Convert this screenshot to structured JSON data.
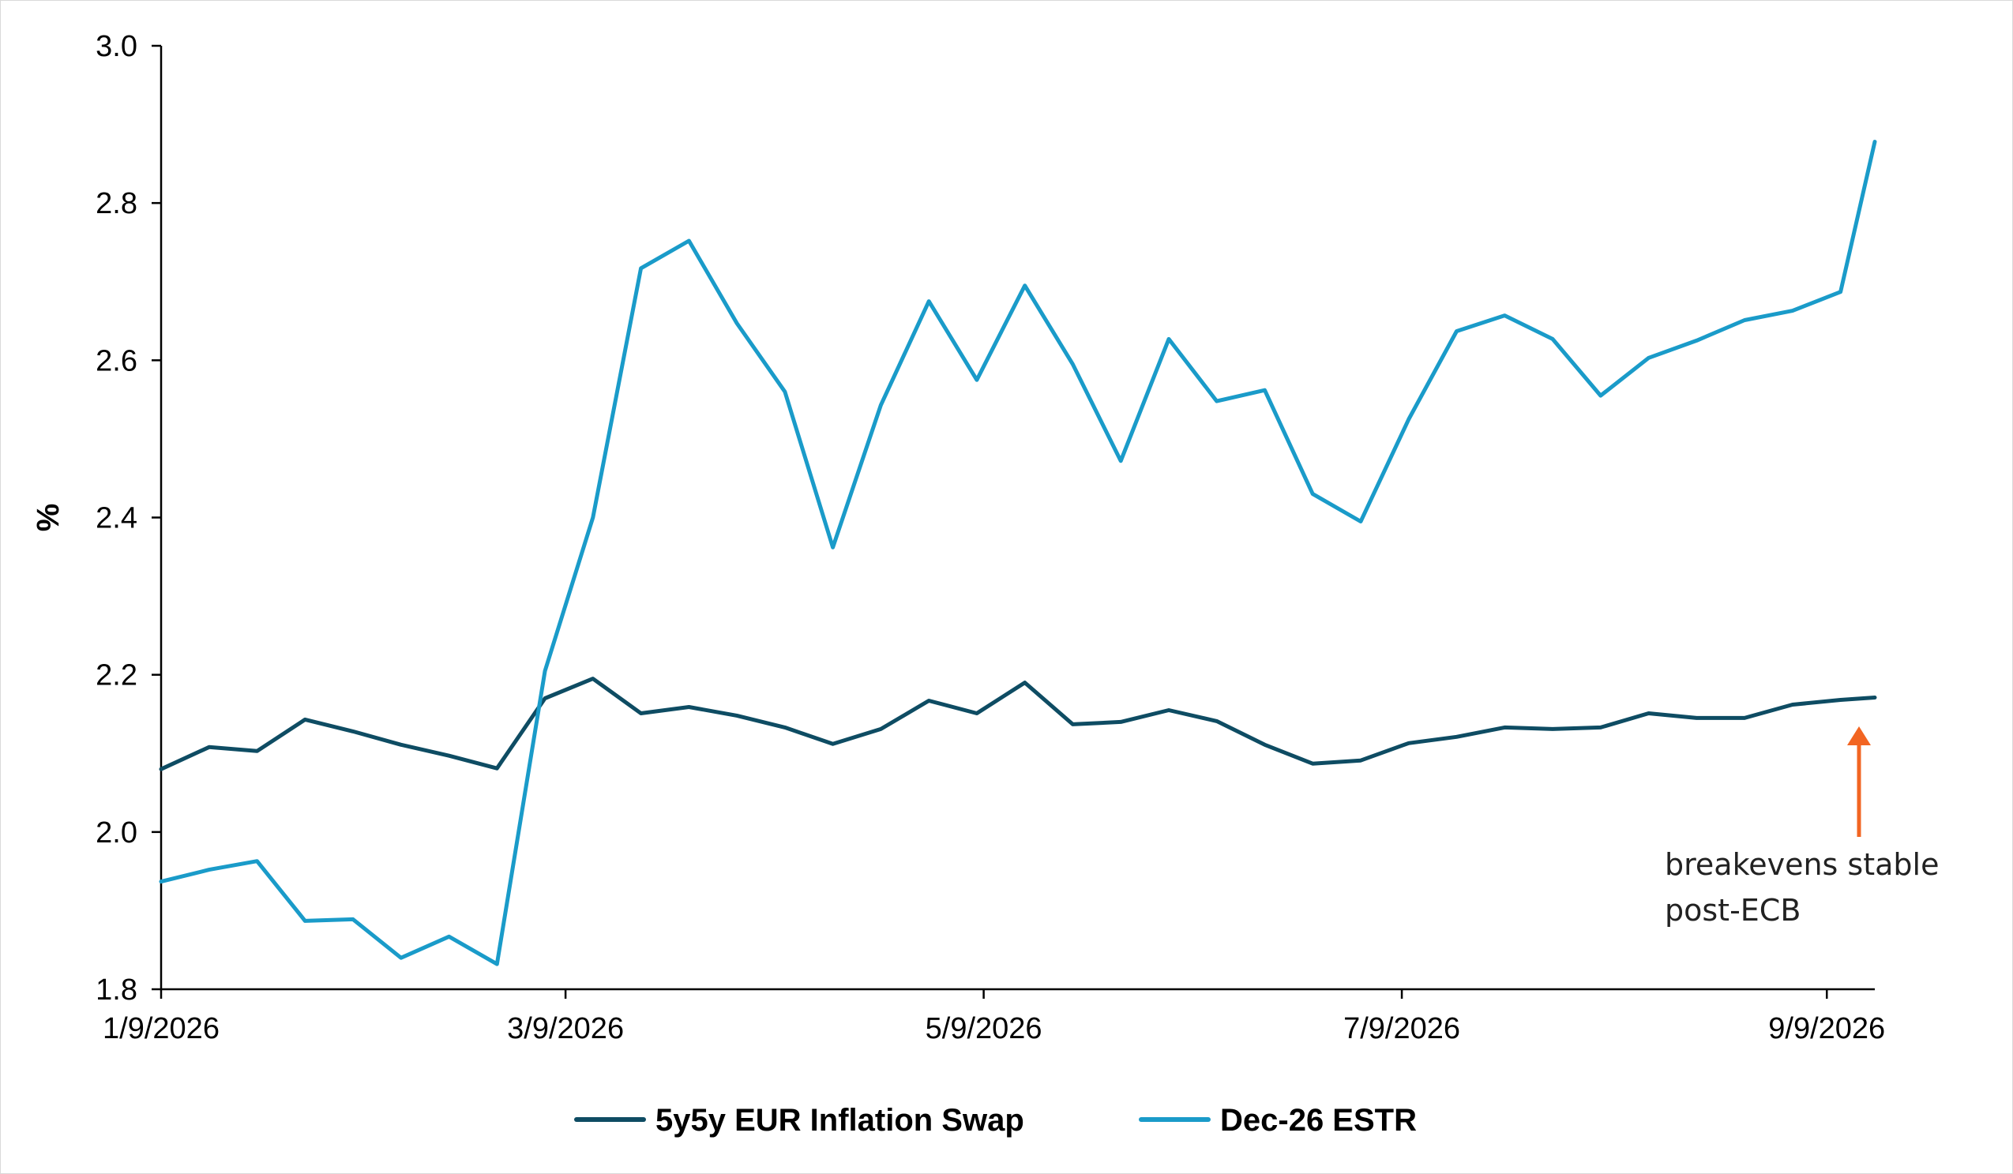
{
  "chart_data": {
    "type": "line",
    "title": "",
    "xlabel": "",
    "ylabel": "%",
    "ylim": [
      1.8,
      3.0
    ],
    "yticks": [
      "1.8",
      "2.0",
      "2.2",
      "2.4",
      "2.6",
      "2.8",
      "3.0"
    ],
    "xlim": [
      "2026-01-09",
      "2026-09-16"
    ],
    "xticks": [
      {
        "label": "1/9/2026",
        "date": "2026-01-09"
      },
      {
        "label": "3/9/2026",
        "date": "2026-03-09"
      },
      {
        "label": "5/9/2026",
        "date": "2026-05-09"
      },
      {
        "label": "7/9/2026",
        "date": "2026-07-09"
      },
      {
        "label": "9/9/2026",
        "date": "2026-09-09"
      }
    ],
    "x": [
      "2026-01-09",
      "2026-01-16",
      "2026-01-23",
      "2026-01-30",
      "2026-02-06",
      "2026-02-13",
      "2026-02-20",
      "2026-02-27",
      "2026-03-06",
      "2026-03-13",
      "2026-03-20",
      "2026-03-27",
      "2026-04-03",
      "2026-04-10",
      "2026-04-17",
      "2026-04-24",
      "2026-05-01",
      "2026-05-08",
      "2026-05-15",
      "2026-05-22",
      "2026-05-29",
      "2026-06-05",
      "2026-06-12",
      "2026-06-19",
      "2026-06-26",
      "2026-07-03",
      "2026-07-10",
      "2026-07-17",
      "2026-07-24",
      "2026-07-31",
      "2026-08-07",
      "2026-08-14",
      "2026-08-21",
      "2026-08-28",
      "2026-09-04",
      "2026-09-11",
      "2026-09-16"
    ],
    "series": [
      {
        "name": "5y5y EUR Inflation Swap",
        "color": "#0e4c63",
        "values": [
          2.08,
          2.108,
          2.103,
          2.143,
          2.128,
          2.111,
          2.097,
          2.081,
          2.17,
          2.195,
          2.151,
          2.159,
          2.148,
          2.133,
          2.112,
          2.131,
          2.167,
          2.151,
          2.19,
          2.137,
          2.14,
          2.155,
          2.141,
          2.111,
          2.087,
          2.091,
          2.113,
          2.121,
          2.133,
          2.131,
          2.133,
          2.151,
          2.145,
          2.145,
          2.162,
          2.168,
          2.171
        ]
      },
      {
        "name": "Dec-26 ESTR",
        "color": "#1a9bc9",
        "values": [
          1.937,
          1.952,
          1.963,
          1.887,
          1.889,
          1.84,
          1.867,
          1.832,
          2.205,
          2.4,
          2.717,
          2.752,
          2.647,
          2.56,
          2.362,
          2.543,
          2.675,
          2.575,
          2.695,
          2.595,
          2.472,
          2.627,
          2.548,
          2.562,
          2.43,
          2.395,
          2.525,
          2.637,
          2.657,
          2.627,
          2.555,
          2.603,
          2.625,
          2.651,
          2.663,
          2.687,
          2.878
        ]
      }
    ],
    "annotation": {
      "lines": [
        "breakevens stable",
        "post-ECB"
      ],
      "arrow_color": "#f26522"
    },
    "legend": "bottom",
    "grid": false
  }
}
